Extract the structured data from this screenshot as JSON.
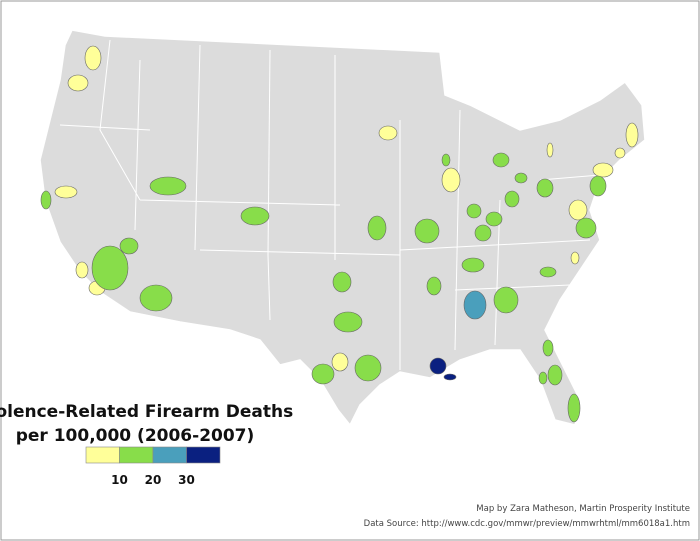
{
  "title": [
    "Violence-Related Firearm Deaths",
    "per 100,000 (2006-2007)"
  ],
  "legend": {
    "colors": [
      "#ffff99",
      "#88dd4a",
      "#4a9fbc",
      "#0a2080"
    ],
    "ticks": [
      10,
      20,
      30
    ]
  },
  "credits": [
    "Map by Zara Matheson, Martin Prosperity Institute",
    "Data Source: http://www.cdc.gov/mmwr/preview/mmwrhtml/mm6018a1.htm"
  ]
}
